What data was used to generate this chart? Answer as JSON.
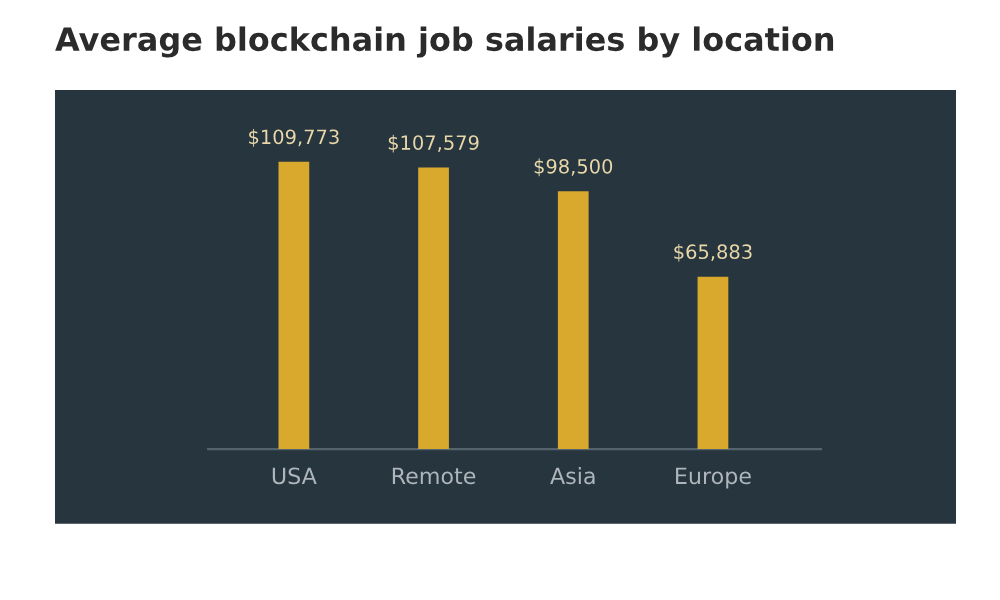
{
  "chart_data": {
    "type": "bar",
    "title": "Average blockchain job salaries by location",
    "categories": [
      "USA",
      "Remote",
      "Asia",
      "Europe"
    ],
    "values": [
      109773,
      107579,
      98500,
      65883
    ],
    "color": "#d9a92e",
    "data_labels": true,
    "value_labels": [
      "$109,773",
      "$107,579",
      "$98,500",
      "$65,883"
    ]
  }
}
